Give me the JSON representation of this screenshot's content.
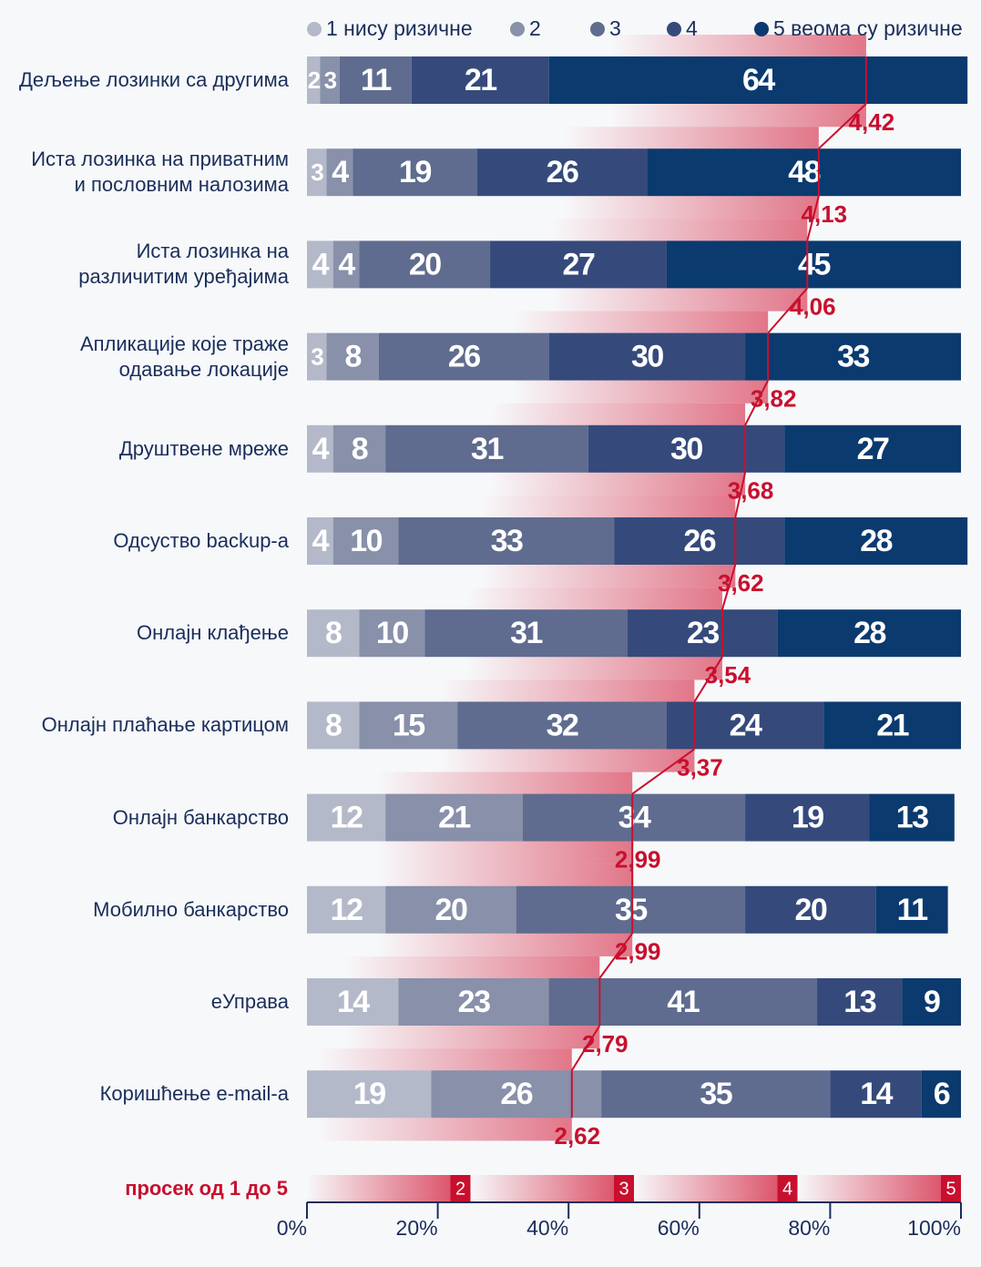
{
  "chart_data": {
    "type": "stacked-bar",
    "orientation": "horizontal",
    "categories": [
      "Дељење лозинки са другима",
      "Иста лозинка на приватним\nи пословним налозима",
      "Иста лозинка на\nразличитим уређајима",
      "Апликације које траже\nодавање локације",
      "Друштвене мреже",
      "Одсуство backup-а",
      "Онлајн клађење",
      "Онлајн плаћање картицом",
      "Онлајн банкарство",
      "Мобилно банкарство",
      "еУправа",
      "Коришћење e-mail-а"
    ],
    "series": [
      {
        "name": "1 нису ризичне",
        "color": "#b4b9c9",
        "values": [
          2,
          3,
          4,
          3,
          4,
          4,
          8,
          8,
          12,
          12,
          14,
          19
        ]
      },
      {
        "name": "2",
        "color": "#8890aa",
        "values": [
          3,
          4,
          4,
          8,
          8,
          10,
          10,
          15,
          21,
          20,
          23,
          26
        ]
      },
      {
        "name": "3",
        "color": "#5f6c8f",
        "values": [
          11,
          19,
          20,
          26,
          31,
          33,
          31,
          32,
          34,
          35,
          41,
          35
        ]
      },
      {
        "name": "4",
        "color": "#354a7b",
        "values": [
          21,
          26,
          27,
          30,
          30,
          26,
          23,
          24,
          19,
          20,
          13,
          14
        ]
      },
      {
        "name": "5 веома су ризичне",
        "color": "#0b3a6f",
        "values": [
          64,
          48,
          45,
          33,
          27,
          28,
          28,
          21,
          13,
          11,
          9,
          6
        ]
      }
    ],
    "xlim": [
      0,
      100
    ],
    "xticks": [
      {
        "value": 0,
        "label": "0%"
      },
      {
        "value": 20,
        "label": "20%"
      },
      {
        "value": 40,
        "label": "40%"
      },
      {
        "value": 60,
        "label": "60%"
      },
      {
        "value": 80,
        "label": "80%"
      },
      {
        "value": 100,
        "label": "100%"
      }
    ],
    "average": {
      "label": "просек од 1 до 5",
      "color": "#c8102e",
      "values": [
        4.42,
        4.13,
        4.06,
        3.82,
        3.68,
        3.62,
        3.54,
        3.37,
        2.99,
        2.99,
        2.79,
        2.62
      ],
      "value_labels": [
        "4,42",
        "4,13",
        "4,06",
        "3,82",
        "3,68",
        "3,62",
        "3,54",
        "3,37",
        "2,99",
        "2,99",
        "2,79",
        "2,62"
      ],
      "x2lim": [
        1,
        5
      ],
      "x2ticks": [
        2,
        3,
        4,
        5
      ]
    }
  }
}
